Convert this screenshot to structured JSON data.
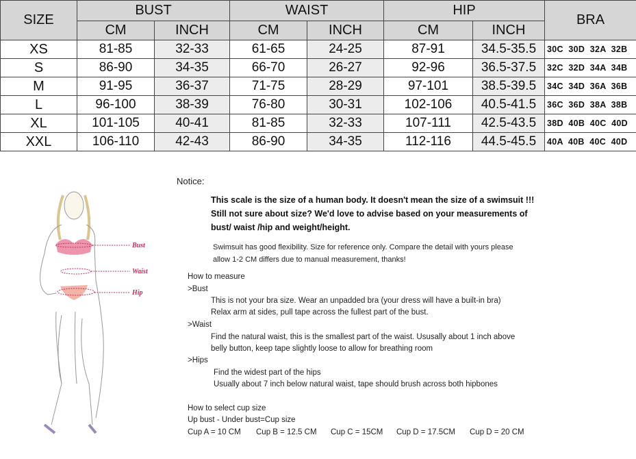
{
  "table": {
    "headers": {
      "size": "SIZE",
      "bust": "BUST",
      "waist": "WAIST",
      "hip": "HIP",
      "bra": "BRA",
      "cm": "CM",
      "inch": "INCH"
    },
    "rows": [
      {
        "size": "XS",
        "bust_cm": "81-85",
        "bust_in": "32-33",
        "waist_cm": "61-65",
        "waist_in": "24-25",
        "hip_cm": "87-91",
        "hip_in": "34.5-35.5",
        "bra": "30C  30D  32A  32B"
      },
      {
        "size": "S",
        "bust_cm": "86-90",
        "bust_in": "34-35",
        "waist_cm": "66-70",
        "waist_in": "26-27",
        "hip_cm": "92-96",
        "hip_in": "36.5-37.5",
        "bra": "32C  32D  34A  34B"
      },
      {
        "size": "M",
        "bust_cm": "91-95",
        "bust_in": "36-37",
        "waist_cm": "71-75",
        "waist_in": "28-29",
        "hip_cm": "97-101",
        "hip_in": "38.5-39.5",
        "bra": "34C  34D  36A  36B"
      },
      {
        "size": "L",
        "bust_cm": "96-100",
        "bust_in": "38-39",
        "waist_cm": "76-80",
        "waist_in": "30-31",
        "hip_cm": "102-106",
        "hip_in": "40.5-41.5",
        "bra": "36C  36D  38A  38B"
      },
      {
        "size": "XL",
        "bust_cm": "101-105",
        "bust_in": "40-41",
        "waist_cm": "81-85",
        "waist_in": "32-33",
        "hip_cm": "107-111",
        "hip_in": "42.5-43.5",
        "bra": "38D  40B  40C  40D"
      },
      {
        "size": "XXL",
        "bust_cm": "106-110",
        "bust_in": "42-43",
        "waist_cm": "86-90",
        "waist_in": "34-35",
        "hip_cm": "112-116",
        "hip_in": "44.5-45.5",
        "bra": "40A  40B  40C  40D"
      }
    ]
  },
  "figure": {
    "labels": {
      "bust": "Bust",
      "waist": "Waist",
      "hip": "Hip"
    }
  },
  "notice": {
    "title": "Notice:",
    "bold": [
      "This scale is the size of a human body. It doesn't mean the size of a swimsuit !!!",
      "Still not sure about size?  We'd love to advise based on your measurements of",
      "bust/ waist /hip and weight/height."
    ],
    "note": [
      "Swimsuit has good flexibility. Size for reference only. Compare the detail with yours please",
      "allow 1-2 CM differs due to manual measurement, thanks!"
    ],
    "measure_title": "How to measure",
    "bust_title": ">Bust",
    "bust": [
      "This is not your bra size. Wear an unpadded bra (your dress will have a built-in bra)",
      "Relax arm at sides, pull tape across the fullest part of the bust."
    ],
    "waist_title": ">Waist",
    "waist": [
      "Find the natural waist, this is the smallest part of the waist. Ususally about 1 inch above",
      "belly button, keep tape slightly loose to allow for breathing room"
    ],
    "hips_title": ">Hips",
    "hips": [
      "Find the widest part of the hips",
      "Usually about 7 inch below natural waist, tape should brush across both hipbones"
    ],
    "cup_title": "How to select cup size",
    "cup_formula": "Up bust - Under bust=Cup size",
    "cups": [
      "Cup A = 10 CM",
      "Cup B = 12.5 CM",
      "Cup C = 15CM",
      "Cup D = 17.5CM",
      "Cup D = 20 CM"
    ]
  }
}
